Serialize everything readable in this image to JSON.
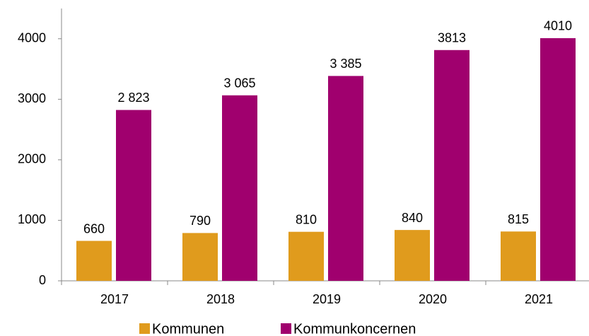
{
  "chart_data": {
    "type": "bar",
    "categories": [
      "2017",
      "2018",
      "2019",
      "2020",
      "2021"
    ],
    "series": [
      {
        "name": "Kommunen",
        "color": "#e09b1d",
        "values": [
          660,
          790,
          810,
          840,
          815
        ]
      },
      {
        "name": "Kommunkoncernen",
        "color": "#a0006e",
        "values": [
          2823,
          3065,
          3385,
          3813,
          4010
        ],
        "value_labels": [
          "2 823",
          "3 065",
          "3 385",
          "3813",
          "4010"
        ]
      }
    ],
    "ylim": [
      0,
      4500
    ],
    "yticks": [
      0,
      1000,
      2000,
      3000,
      4000
    ],
    "grid": false,
    "legend": "bottom"
  }
}
